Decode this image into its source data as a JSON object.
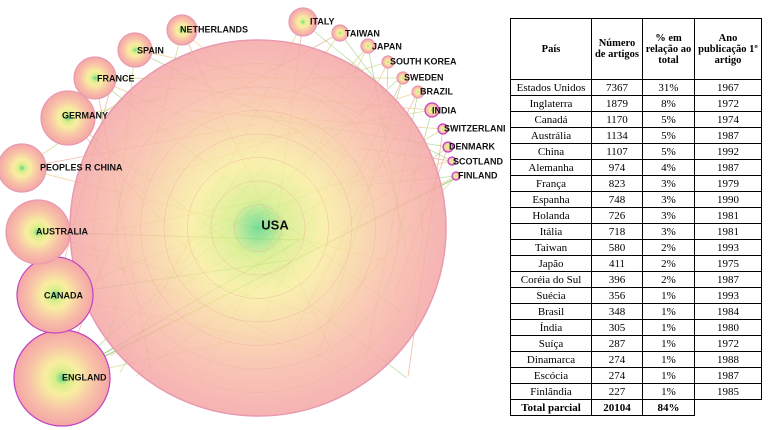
{
  "network": {
    "nodes": [
      {
        "label": "USA"
      },
      {
        "label": "ENGLAND"
      },
      {
        "label": "CANADA"
      },
      {
        "label": "AUSTRALIA"
      },
      {
        "label": "PEOPLES R CHINA"
      },
      {
        "label": "GERMANY"
      },
      {
        "label": "FRANCE"
      },
      {
        "label": "SPAIN"
      },
      {
        "label": "NETHERLANDS"
      },
      {
        "label": "ITALY"
      },
      {
        "label": "TAIWAN"
      },
      {
        "label": "JAPAN"
      },
      {
        "label": "SOUTH KOREA"
      },
      {
        "label": "SWEDEN"
      },
      {
        "label": "BRAZIL"
      },
      {
        "label": "INDIA"
      },
      {
        "label": "SWITZERLAND"
      },
      {
        "label": "DENMARK"
      },
      {
        "label": "SCOTLAND"
      },
      {
        "label": "FINLAND"
      }
    ]
  },
  "table": {
    "header": [
      "País",
      "Número de artigos",
      "% em relação ao total",
      "Ano publicação 1º artigo"
    ],
    "rows": [
      [
        "Estados Unidos",
        "7367",
        "31%",
        "1967"
      ],
      [
        "Inglaterra",
        "1879",
        "8%",
        "1972"
      ],
      [
        "Canadá",
        "1170",
        "5%",
        "1974"
      ],
      [
        "Austrália",
        "1134",
        "5%",
        "1987"
      ],
      [
        "China",
        "1107",
        "5%",
        "1992"
      ],
      [
        "Alemanha",
        "974",
        "4%",
        "1987"
      ],
      [
        "França",
        "823",
        "3%",
        "1979"
      ],
      [
        "Espanha",
        "748",
        "3%",
        "1990"
      ],
      [
        "Holanda",
        "726",
        "3%",
        "1981"
      ],
      [
        "Itália",
        "718",
        "3%",
        "1981"
      ],
      [
        "Taiwan",
        "580",
        "2%",
        "1993"
      ],
      [
        "Japão",
        "411",
        "2%",
        "1975"
      ],
      [
        "Coréia do Sul",
        "396",
        "2%",
        "1987"
      ],
      [
        "Suécia",
        "356",
        "1%",
        "1993"
      ],
      [
        "Brasil",
        "348",
        "1%",
        "1984"
      ],
      [
        "Índia",
        "305",
        "1%",
        "1980"
      ],
      [
        "Suíça",
        "287",
        "1%",
        "1972"
      ],
      [
        "Dinamarca",
        "274",
        "1%",
        "1988"
      ],
      [
        "Escócia",
        "274",
        "1%",
        "1987"
      ],
      [
        "Finlândia",
        "227",
        "1%",
        "1985"
      ]
    ],
    "total": [
      "Total parcial",
      "20104",
      "84%"
    ]
  }
}
